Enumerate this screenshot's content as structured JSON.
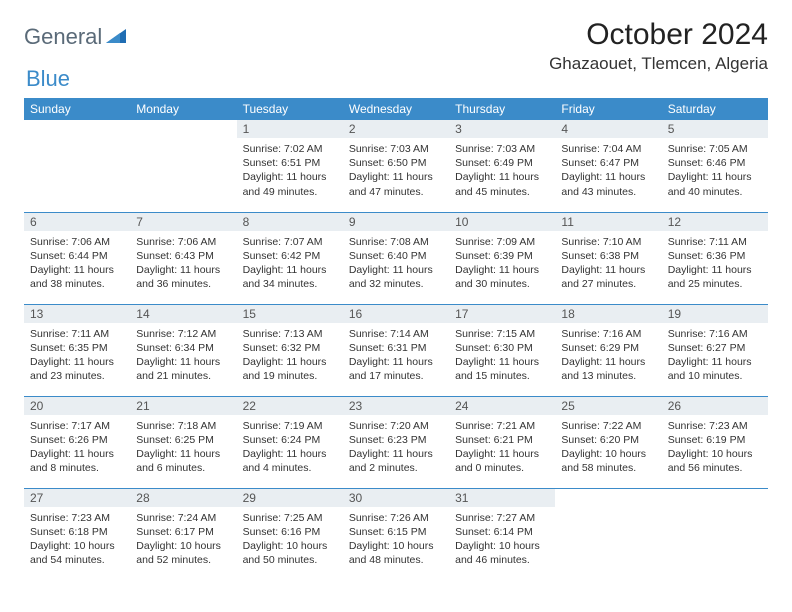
{
  "logo": {
    "text1": "General",
    "text2": "Blue"
  },
  "title": "October 2024",
  "location": "Ghazaouet, Tlemcen, Algeria",
  "colors": {
    "header_bg": "#3b8bc9",
    "header_text": "#ffffff",
    "daynum_bg": "#e9eef2",
    "row_border": "#3b8bc9",
    "logo_gray": "#5a6a78",
    "logo_blue": "#3b8bc9",
    "page_bg": "#ffffff"
  },
  "day_headers": [
    "Sunday",
    "Monday",
    "Tuesday",
    "Wednesday",
    "Thursday",
    "Friday",
    "Saturday"
  ],
  "weeks": [
    [
      {
        "n": "",
        "sr": "",
        "ss": "",
        "dl": ""
      },
      {
        "n": "",
        "sr": "",
        "ss": "",
        "dl": ""
      },
      {
        "n": "1",
        "sr": "Sunrise: 7:02 AM",
        "ss": "Sunset: 6:51 PM",
        "dl": "Daylight: 11 hours and 49 minutes."
      },
      {
        "n": "2",
        "sr": "Sunrise: 7:03 AM",
        "ss": "Sunset: 6:50 PM",
        "dl": "Daylight: 11 hours and 47 minutes."
      },
      {
        "n": "3",
        "sr": "Sunrise: 7:03 AM",
        "ss": "Sunset: 6:49 PM",
        "dl": "Daylight: 11 hours and 45 minutes."
      },
      {
        "n": "4",
        "sr": "Sunrise: 7:04 AM",
        "ss": "Sunset: 6:47 PM",
        "dl": "Daylight: 11 hours and 43 minutes."
      },
      {
        "n": "5",
        "sr": "Sunrise: 7:05 AM",
        "ss": "Sunset: 6:46 PM",
        "dl": "Daylight: 11 hours and 40 minutes."
      }
    ],
    [
      {
        "n": "6",
        "sr": "Sunrise: 7:06 AM",
        "ss": "Sunset: 6:44 PM",
        "dl": "Daylight: 11 hours and 38 minutes."
      },
      {
        "n": "7",
        "sr": "Sunrise: 7:06 AM",
        "ss": "Sunset: 6:43 PM",
        "dl": "Daylight: 11 hours and 36 minutes."
      },
      {
        "n": "8",
        "sr": "Sunrise: 7:07 AM",
        "ss": "Sunset: 6:42 PM",
        "dl": "Daylight: 11 hours and 34 minutes."
      },
      {
        "n": "9",
        "sr": "Sunrise: 7:08 AM",
        "ss": "Sunset: 6:40 PM",
        "dl": "Daylight: 11 hours and 32 minutes."
      },
      {
        "n": "10",
        "sr": "Sunrise: 7:09 AM",
        "ss": "Sunset: 6:39 PM",
        "dl": "Daylight: 11 hours and 30 minutes."
      },
      {
        "n": "11",
        "sr": "Sunrise: 7:10 AM",
        "ss": "Sunset: 6:38 PM",
        "dl": "Daylight: 11 hours and 27 minutes."
      },
      {
        "n": "12",
        "sr": "Sunrise: 7:11 AM",
        "ss": "Sunset: 6:36 PM",
        "dl": "Daylight: 11 hours and 25 minutes."
      }
    ],
    [
      {
        "n": "13",
        "sr": "Sunrise: 7:11 AM",
        "ss": "Sunset: 6:35 PM",
        "dl": "Daylight: 11 hours and 23 minutes."
      },
      {
        "n": "14",
        "sr": "Sunrise: 7:12 AM",
        "ss": "Sunset: 6:34 PM",
        "dl": "Daylight: 11 hours and 21 minutes."
      },
      {
        "n": "15",
        "sr": "Sunrise: 7:13 AM",
        "ss": "Sunset: 6:32 PM",
        "dl": "Daylight: 11 hours and 19 minutes."
      },
      {
        "n": "16",
        "sr": "Sunrise: 7:14 AM",
        "ss": "Sunset: 6:31 PM",
        "dl": "Daylight: 11 hours and 17 minutes."
      },
      {
        "n": "17",
        "sr": "Sunrise: 7:15 AM",
        "ss": "Sunset: 6:30 PM",
        "dl": "Daylight: 11 hours and 15 minutes."
      },
      {
        "n": "18",
        "sr": "Sunrise: 7:16 AM",
        "ss": "Sunset: 6:29 PM",
        "dl": "Daylight: 11 hours and 13 minutes."
      },
      {
        "n": "19",
        "sr": "Sunrise: 7:16 AM",
        "ss": "Sunset: 6:27 PM",
        "dl": "Daylight: 11 hours and 10 minutes."
      }
    ],
    [
      {
        "n": "20",
        "sr": "Sunrise: 7:17 AM",
        "ss": "Sunset: 6:26 PM",
        "dl": "Daylight: 11 hours and 8 minutes."
      },
      {
        "n": "21",
        "sr": "Sunrise: 7:18 AM",
        "ss": "Sunset: 6:25 PM",
        "dl": "Daylight: 11 hours and 6 minutes."
      },
      {
        "n": "22",
        "sr": "Sunrise: 7:19 AM",
        "ss": "Sunset: 6:24 PM",
        "dl": "Daylight: 11 hours and 4 minutes."
      },
      {
        "n": "23",
        "sr": "Sunrise: 7:20 AM",
        "ss": "Sunset: 6:23 PM",
        "dl": "Daylight: 11 hours and 2 minutes."
      },
      {
        "n": "24",
        "sr": "Sunrise: 7:21 AM",
        "ss": "Sunset: 6:21 PM",
        "dl": "Daylight: 11 hours and 0 minutes."
      },
      {
        "n": "25",
        "sr": "Sunrise: 7:22 AM",
        "ss": "Sunset: 6:20 PM",
        "dl": "Daylight: 10 hours and 58 minutes."
      },
      {
        "n": "26",
        "sr": "Sunrise: 7:23 AM",
        "ss": "Sunset: 6:19 PM",
        "dl": "Daylight: 10 hours and 56 minutes."
      }
    ],
    [
      {
        "n": "27",
        "sr": "Sunrise: 7:23 AM",
        "ss": "Sunset: 6:18 PM",
        "dl": "Daylight: 10 hours and 54 minutes."
      },
      {
        "n": "28",
        "sr": "Sunrise: 7:24 AM",
        "ss": "Sunset: 6:17 PM",
        "dl": "Daylight: 10 hours and 52 minutes."
      },
      {
        "n": "29",
        "sr": "Sunrise: 7:25 AM",
        "ss": "Sunset: 6:16 PM",
        "dl": "Daylight: 10 hours and 50 minutes."
      },
      {
        "n": "30",
        "sr": "Sunrise: 7:26 AM",
        "ss": "Sunset: 6:15 PM",
        "dl": "Daylight: 10 hours and 48 minutes."
      },
      {
        "n": "31",
        "sr": "Sunrise: 7:27 AM",
        "ss": "Sunset: 6:14 PM",
        "dl": "Daylight: 10 hours and 46 minutes."
      },
      {
        "n": "",
        "sr": "",
        "ss": "",
        "dl": ""
      },
      {
        "n": "",
        "sr": "",
        "ss": "",
        "dl": ""
      }
    ]
  ]
}
